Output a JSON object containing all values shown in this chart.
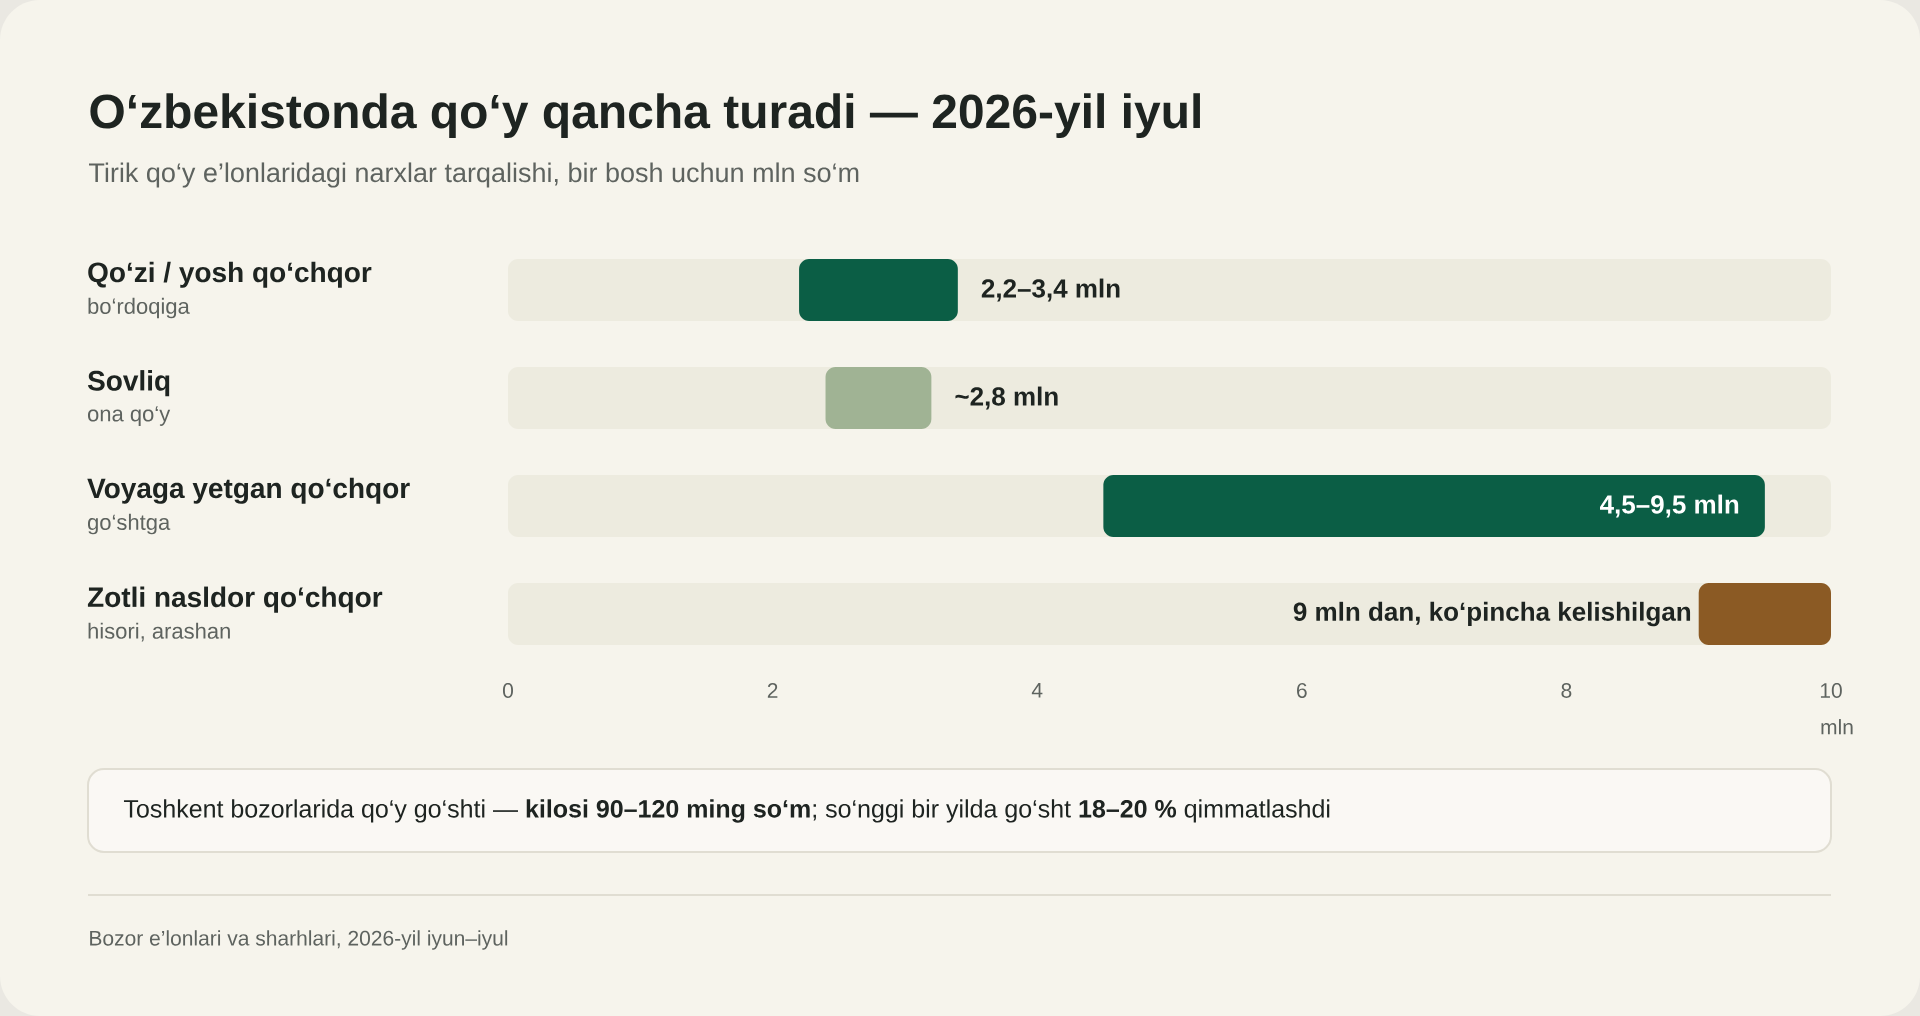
{
  "chart_data": {
    "type": "bar",
    "orientation": "horizontal",
    "title": "O‘zbekistonda qo‘y qancha turadi — 2026-yil iyul",
    "subtitle": "Tirik qo‘y e’lonlaridagi narxlar tarqalishi, bir bosh uchun mln so‘m",
    "categories": [
      "Qo‘zi / yosh qo‘chqor",
      "Sovliq",
      "Voyaga yetgan qo‘chqor",
      "Zotli nasldor qo‘chqor"
    ],
    "base": [
      2.2,
      2.4,
      4.5,
      9.0
    ],
    "values": [
      1.2,
      0.8,
      5.0,
      1.0
    ],
    "colors": [
      "#0b5e45",
      "#a0b394",
      "#0b5e45",
      "#8b5a24"
    ],
    "xlabel": "mln",
    "xlim": [
      0,
      10
    ],
    "xticks": [
      0,
      2,
      4,
      6,
      8,
      10
    ],
    "grid": false,
    "annotations": [
      "bo‘rdoqiga",
      "ona qo‘y",
      "go‘shtga",
      "hisori, arashan",
      "2,2–3,4 mln",
      "~2,8 mln",
      "4,5–9,5 mln",
      "9 mln dan, ko‘pincha kelishilgan",
      "Toshkent bozorlarida qo‘y go‘shti — **kilosi 90–120 ming so‘m**; so‘nggi bir yilda go‘sht **18–20 %** qimmatlashdi",
      "Bozor e’lonlari va sharhlari, 2026-yil iyun–iyul"
    ]
  }
}
